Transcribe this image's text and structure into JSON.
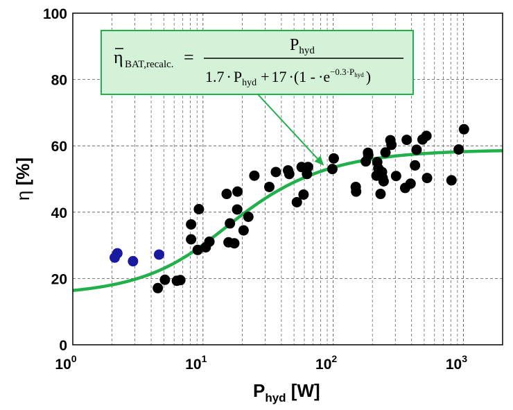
{
  "chart_data": {
    "type": "scatter",
    "xscale": "log",
    "xlim": [
      1,
      2000
    ],
    "ylim": [
      0,
      100
    ],
    "grid": true,
    "xlabel": {
      "main": "P",
      "sub": "hyd",
      "unit": " [W]"
    },
    "ylabel": {
      "symbol": "η",
      "unit": " [%]"
    },
    "x_ticks": [
      {
        "value": 1,
        "base": "10",
        "exp": "0"
      },
      {
        "value": 10,
        "base": "10",
        "exp": "1"
      },
      {
        "value": 100,
        "base": "10",
        "exp": "2"
      },
      {
        "value": 1000,
        "base": "10",
        "exp": "3"
      }
    ],
    "y_ticks": [
      {
        "value": 0,
        "label": "0"
      },
      {
        "value": 20,
        "label": "20"
      },
      {
        "value": 40,
        "label": "40"
      },
      {
        "value": 60,
        "label": "60"
      },
      {
        "value": 80,
        "label": "80"
      },
      {
        "value": 100,
        "label": "100"
      }
    ],
    "annotation": {
      "lhs_main": "η",
      "lhs_sub": "BAT,recalc.",
      "equals": "=",
      "numerator_main": "P",
      "numerator_sub": "hyd",
      "denominator": {
        "coef1": "1.7",
        "dot": "·",
        "p_main": "P",
        "p_sub": "hyd",
        "plus": "+",
        "coef2": "17",
        "paren_open": "(1 -",
        "exp_base": "e",
        "exp_power": "−0.3·P",
        "exp_power_sub": "hyd",
        "paren_close": ")"
      },
      "target_x": 85,
      "target_y": 54
    },
    "curve": {
      "color": "#21b04b",
      "formula": "P/(1.7*P + 17*(1-exp(-0.3*P)))*100",
      "x_range": [
        1,
        2000
      ]
    },
    "series": [
      {
        "color": "#1a1aa0",
        "points": [
          [
            2.1,
            26.3
          ],
          [
            2.2,
            27.6
          ],
          [
            2.9,
            25.2
          ],
          [
            4.6,
            27.2
          ]
        ]
      },
      {
        "color": "#000000",
        "points": [
          [
            4.5,
            17.1
          ],
          [
            5.1,
            19.6
          ],
          [
            6.3,
            19.3
          ],
          [
            6.7,
            19.5
          ],
          [
            8.1,
            31.8
          ],
          [
            8.1,
            36.3
          ],
          [
            9.1,
            28.6
          ],
          [
            9.3,
            40.9
          ],
          [
            10.5,
            29.4
          ],
          [
            11.2,
            31.1
          ],
          [
            15.2,
            45.5
          ],
          [
            15.7,
            30.9
          ],
          [
            16.1,
            36.6
          ],
          [
            17.4,
            30.6
          ],
          [
            18.3,
            40.8
          ],
          [
            18.4,
            46.2
          ],
          [
            20.5,
            34.5
          ],
          [
            22.3,
            38.6
          ],
          [
            24.8,
            51.0
          ],
          [
            32.3,
            47.6
          ],
          [
            36.3,
            52.1
          ],
          [
            45.0,
            52.6
          ],
          [
            46.0,
            51.5
          ],
          [
            52.6,
            43.0
          ],
          [
            57.2,
            53.6
          ],
          [
            59.2,
            45.3
          ],
          [
            62.9,
            51.5
          ],
          [
            64.1,
            53.6
          ],
          [
            98.5,
            53.0
          ],
          [
            101.0,
            56.2
          ],
          [
            149.0,
            47.6
          ],
          [
            150.0,
            46.2
          ],
          [
            178.0,
            55.3
          ],
          [
            185.0,
            57.9
          ],
          [
            186.0,
            57.2
          ],
          [
            215.0,
            51.0
          ],
          [
            218.0,
            55.1
          ],
          [
            222.0,
            53.2
          ],
          [
            231.0,
            45.5
          ],
          [
            237.0,
            52.1
          ],
          [
            240.0,
            50.3
          ],
          [
            244.0,
            49.3
          ],
          [
            252.0,
            58.0
          ],
          [
            275.0,
            61.7
          ],
          [
            280.0,
            60.3
          ],
          [
            304.0,
            50.9
          ],
          [
            357.0,
            47.3
          ],
          [
            367.0,
            61.8
          ],
          [
            393.0,
            48.6
          ],
          [
            425.0,
            54.1
          ],
          [
            437.0,
            58.8
          ],
          [
            485.0,
            61.9
          ],
          [
            520.0,
            63.0
          ],
          [
            526.0,
            50.3
          ],
          [
            810.0,
            49.6
          ],
          [
            920.0,
            58.9
          ],
          [
            1010.0,
            65.0
          ]
        ]
      }
    ]
  }
}
